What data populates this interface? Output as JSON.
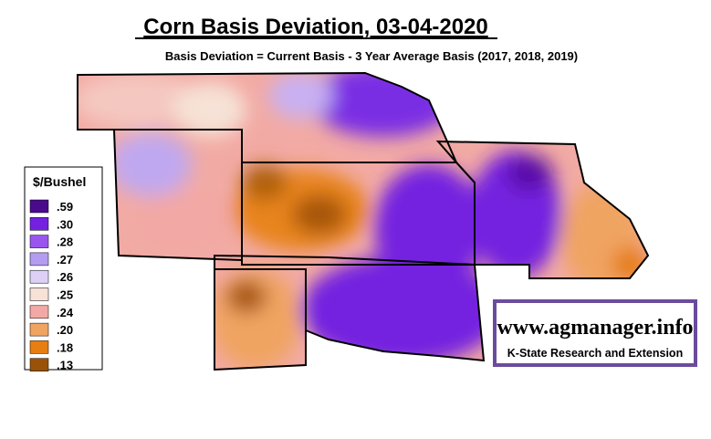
{
  "title": "Corn Basis Deviation, 03-04-2020",
  "subtitle": "Basis Deviation = Current Basis - 3 Year Average Basis (2017, 2018, 2019)",
  "legend": {
    "title": "$/Bushel",
    "items": [
      {
        "label": ".59",
        "color": "#4a0a8c"
      },
      {
        "label": ".30",
        "color": "#7420e0"
      },
      {
        "label": ".28",
        "color": "#9a55ee"
      },
      {
        "label": ".27",
        "color": "#b49cf0"
      },
      {
        "label": ".26",
        "color": "#ddd0f6"
      },
      {
        "label": ".25",
        "color": "#f6e2d6"
      },
      {
        "label": ".24",
        "color": "#f2a8a4"
      },
      {
        "label": ".20",
        "color": "#f0a462"
      },
      {
        "label": ".18",
        "color": "#e67e12"
      },
      {
        "label": ".13",
        "color": "#9a5208"
      }
    ]
  },
  "logo": {
    "url": "www.agmanager.info",
    "org": "K-State Research and Extension"
  }
}
